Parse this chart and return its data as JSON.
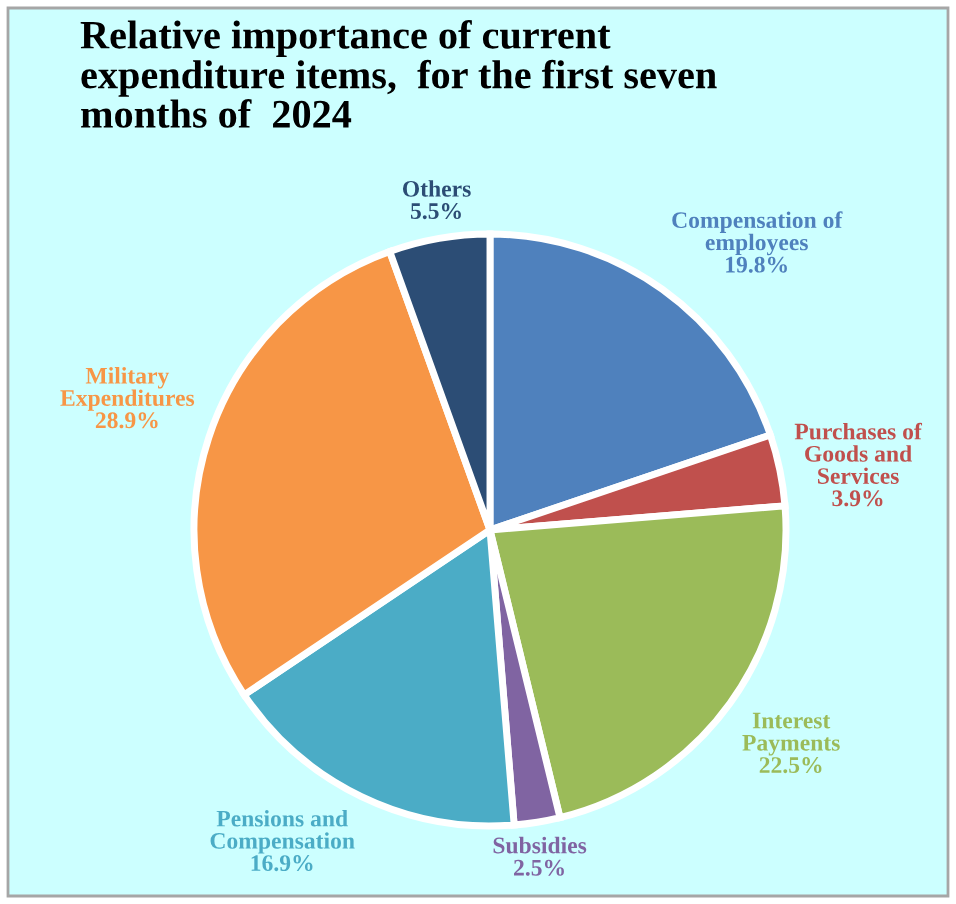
{
  "chart_data": {
    "type": "pie",
    "title": "Relative importance of current\nexpenditure items,  for the first seven\nmonths of  2024",
    "categories": [
      "Compensation of\nemployees",
      "Purchases of\nGoods and\nServices",
      "Interest\nPayments",
      "Subsidies",
      "Pensions and\nCompensation",
      "Military\nExpenditures",
      "Others"
    ],
    "values": [
      19.8,
      3.9,
      22.5,
      2.5,
      16.9,
      28.9,
      5.5
    ],
    "value_labels": [
      "19.8%",
      "3.9%",
      "22.5%",
      "2.5%",
      "16.9%",
      "28.9%",
      "5.5%"
    ],
    "colors": [
      "#4f81bd",
      "#c0504d",
      "#9bbb59",
      "#8064a2",
      "#4bacc6",
      "#f79646",
      "#2c4d75"
    ],
    "legend": false
  }
}
